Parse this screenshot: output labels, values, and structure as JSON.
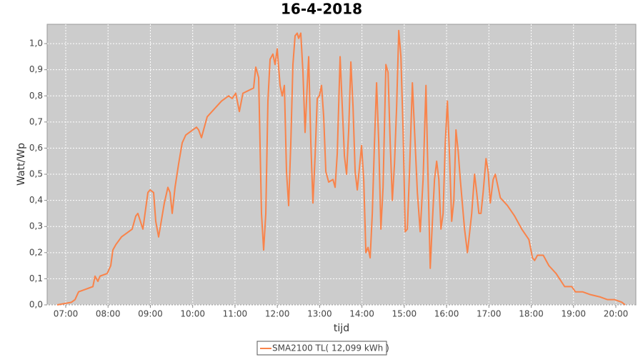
{
  "chart_data": {
    "type": "line",
    "title": "16-4-2018",
    "x_label": "tijd",
    "y_label": "Watt/Wp",
    "xlim": [
      6.561,
      20.473
    ],
    "ylim": [
      0,
      1.074
    ],
    "xticks": [
      {
        "value": 7,
        "label": "07:00"
      },
      {
        "value": 8,
        "label": "08:00"
      },
      {
        "value": 9,
        "label": "09:00"
      },
      {
        "value": 10,
        "label": "10:00"
      },
      {
        "value": 11,
        "label": "11:00"
      },
      {
        "value": 12,
        "label": "12:00"
      },
      {
        "value": 13,
        "label": "13:00"
      },
      {
        "value": 14,
        "label": "14:00"
      },
      {
        "value": 15,
        "label": "15:00"
      },
      {
        "value": 16,
        "label": "16:00"
      },
      {
        "value": 17,
        "label": "17:00"
      },
      {
        "value": 18,
        "label": "18:00"
      },
      {
        "value": 19,
        "label": "19:00"
      },
      {
        "value": 20,
        "label": "20:00"
      }
    ],
    "yticks": [
      {
        "value": 0,
        "label": "0,0"
      },
      {
        "value": 0.1,
        "label": "0,1"
      },
      {
        "value": 0.2,
        "label": "0,2"
      },
      {
        "value": 0.3,
        "label": "0,3"
      },
      {
        "value": 0.4,
        "label": "0,4"
      },
      {
        "value": 0.5,
        "label": "0,5"
      },
      {
        "value": 0.6,
        "label": "0,6"
      },
      {
        "value": 0.7,
        "label": "0,7"
      },
      {
        "value": 0.8,
        "label": "0,8"
      },
      {
        "value": 0.9,
        "label": "0,9"
      },
      {
        "value": 1.0,
        "label": "1,0"
      }
    ],
    "grid": true,
    "legend": "bottom",
    "x": [
      6.797,
      7.135,
      7.219,
      7.304,
      7.473,
      7.642,
      7.692,
      7.76,
      7.81,
      7.979,
      8.064,
      8.114,
      8.182,
      8.317,
      8.57,
      8.655,
      8.705,
      8.824,
      8.874,
      8.942,
      8.992,
      9.077,
      9.127,
      9.195,
      9.33,
      9.414,
      9.465,
      9.516,
      9.583,
      9.668,
      9.752,
      9.836,
      10.005,
      10.09,
      10.14,
      10.208,
      10.258,
      10.343,
      10.512,
      10.681,
      10.849,
      10.934,
      11.018,
      11.103,
      11.187,
      11.44,
      11.491,
      11.559,
      11.626,
      11.677,
      11.728,
      11.778,
      11.829,
      11.896,
      11.947,
      11.998,
      12.065,
      12.116,
      12.167,
      12.217,
      12.268,
      12.319,
      12.369,
      12.42,
      12.471,
      12.504,
      12.555,
      12.606,
      12.656,
      12.707,
      12.741,
      12.792,
      12.842,
      12.893,
      12.944,
      12.994,
      13.045,
      13.096,
      13.147,
      13.214,
      13.315,
      13.366,
      13.417,
      13.484,
      13.535,
      13.586,
      13.637,
      13.687,
      13.738,
      13.789,
      13.839,
      13.89,
      13.991,
      14.042,
      14.093,
      14.144,
      14.194,
      14.245,
      14.296,
      14.346,
      14.397,
      14.448,
      14.499,
      14.566,
      14.617,
      14.668,
      14.718,
      14.769,
      14.82,
      14.87,
      14.921,
      14.972,
      15.023,
      15.073,
      15.124,
      15.192,
      15.242,
      15.31,
      15.377,
      15.445,
      15.513,
      15.563,
      15.614,
      15.665,
      15.715,
      15.766,
      15.817,
      15.867,
      15.918,
      15.969,
      16.02,
      16.07,
      16.121,
      16.172,
      16.222,
      16.273,
      16.324,
      16.425,
      16.493,
      16.594,
      16.661,
      16.712,
      16.763,
      16.813,
      16.864,
      16.932,
      16.982,
      17.033,
      17.101,
      17.152,
      17.27,
      17.439,
      17.608,
      17.777,
      17.946,
      18.03,
      18.081,
      18.148,
      18.284,
      18.419,
      18.588,
      18.79,
      18.959,
      19.044,
      19.213,
      19.382,
      19.635,
      19.804,
      19.973,
      20.142,
      20.22
    ],
    "series": [
      {
        "name": "SMA2100 TL( 12,099 kWh )",
        "color": "#f9834a",
        "values": [
          0,
          0.01,
          0.02,
          0.05,
          0.06,
          0.07,
          0.11,
          0.09,
          0.11,
          0.12,
          0.15,
          0.21,
          0.23,
          0.26,
          0.29,
          0.34,
          0.35,
          0.29,
          0.35,
          0.43,
          0.44,
          0.43,
          0.32,
          0.26,
          0.39,
          0.45,
          0.43,
          0.35,
          0.45,
          0.54,
          0.62,
          0.65,
          0.67,
          0.68,
          0.67,
          0.64,
          0.67,
          0.72,
          0.75,
          0.78,
          0.8,
          0.79,
          0.81,
          0.74,
          0.81,
          0.83,
          0.91,
          0.87,
          0.35,
          0.21,
          0.35,
          0.78,
          0.94,
          0.96,
          0.92,
          0.98,
          0.84,
          0.8,
          0.84,
          0.51,
          0.38,
          0.62,
          0.92,
          1.03,
          1.04,
          1.02,
          1.04,
          0.89,
          0.66,
          0.84,
          0.95,
          0.62,
          0.39,
          0.57,
          0.79,
          0.8,
          0.84,
          0.72,
          0.51,
          0.47,
          0.48,
          0.45,
          0.58,
          0.95,
          0.76,
          0.57,
          0.5,
          0.67,
          0.93,
          0.76,
          0.51,
          0.44,
          0.61,
          0.48,
          0.2,
          0.22,
          0.18,
          0.35,
          0.62,
          0.85,
          0.62,
          0.29,
          0.45,
          0.92,
          0.89,
          0.62,
          0.4,
          0.54,
          0.76,
          1.05,
          0.95,
          0.67,
          0.28,
          0.29,
          0.51,
          0.85,
          0.67,
          0.43,
          0.28,
          0.48,
          0.84,
          0.48,
          0.14,
          0.32,
          0.48,
          0.55,
          0.48,
          0.29,
          0.35,
          0.62,
          0.78,
          0.57,
          0.32,
          0.4,
          0.67,
          0.59,
          0.48,
          0.29,
          0.2,
          0.35,
          0.5,
          0.43,
          0.35,
          0.35,
          0.43,
          0.56,
          0.51,
          0.39,
          0.48,
          0.5,
          0.41,
          0.38,
          0.34,
          0.29,
          0.25,
          0.18,
          0.17,
          0.19,
          0.19,
          0.15,
          0.12,
          0.07,
          0.07,
          0.05,
          0.05,
          0.04,
          0.03,
          0.02,
          0.02,
          0.01,
          0
        ]
      }
    ]
  }
}
